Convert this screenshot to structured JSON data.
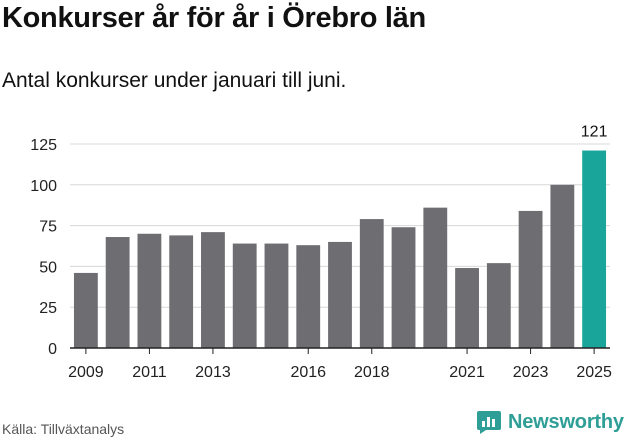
{
  "title": "Konkurser år för år i Örebro län",
  "subtitle": "Antal konkurser under januari till juni.",
  "source": "Källa: Tillväxtanalys",
  "brand": {
    "name": "Newsworthy",
    "icon": "newsworthy-logo-icon"
  },
  "colors": {
    "bar": "#6e6d72",
    "highlight": "#1aa59a",
    "grid": "#d8d8d8",
    "axis": "#222222"
  },
  "chart_data": {
    "type": "bar",
    "title": "Konkurser år för år i Örebro län",
    "subtitle": "Antal konkurser under januari till juni.",
    "categories": [
      "2009",
      "2010",
      "2011",
      "2012",
      "2013",
      "2014",
      "2015",
      "2016",
      "2017",
      "2018",
      "2019",
      "2020",
      "2021",
      "2022",
      "2023",
      "2024",
      "2025"
    ],
    "values": [
      46,
      68,
      70,
      69,
      71,
      64,
      64,
      63,
      65,
      79,
      74,
      86,
      49,
      52,
      84,
      100,
      121
    ],
    "x_tick_labels": [
      "2009",
      "2011",
      "2013",
      "2016",
      "2018",
      "2021",
      "2023",
      "2025"
    ],
    "y_ticks": [
      0,
      25,
      50,
      75,
      100,
      125
    ],
    "ylim": [
      0,
      125
    ],
    "highlight_category": "2025",
    "data_labels": [
      {
        "category": "2025",
        "text": "121"
      }
    ],
    "grid": true,
    "legend": false
  }
}
